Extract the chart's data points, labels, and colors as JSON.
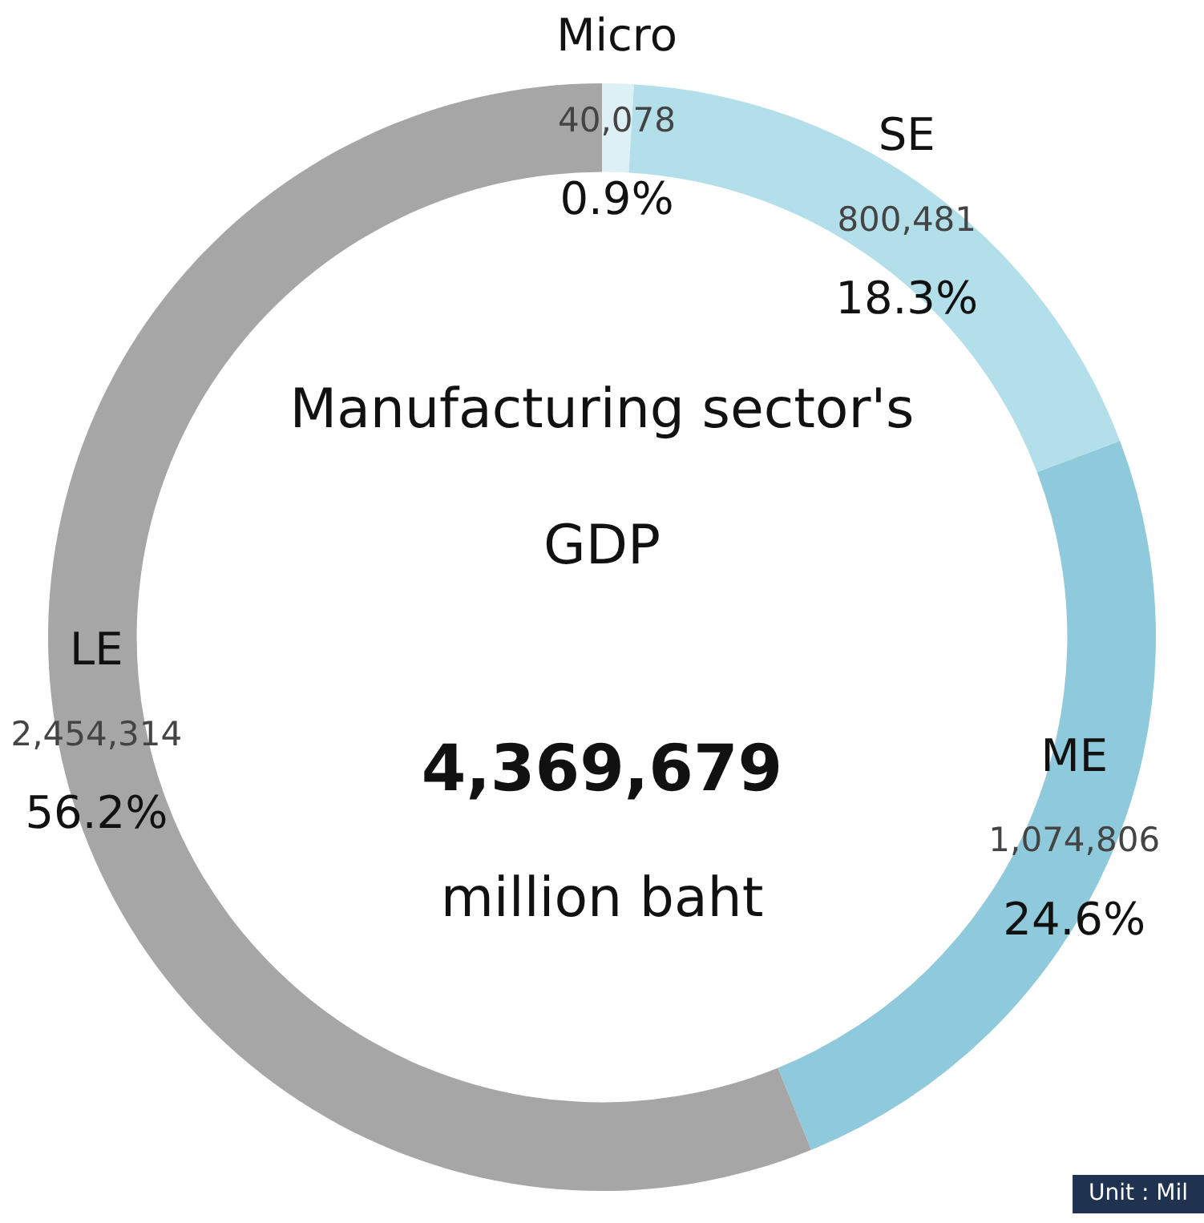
{
  "chart_data": {
    "type": "donut",
    "categories": [
      "Micro",
      "SE",
      "ME",
      "LE"
    ],
    "values": [
      40078,
      800481,
      1074806,
      2454314
    ],
    "colors": [
      "#dcf0f6",
      "#b3dfea",
      "#8fcadc",
      "#a6a6a6"
    ],
    "value_labels": [
      "40,078\n0.9%",
      "800,481\n18.3%",
      "1,074,806\n24.6%",
      "2,454,314\n56.2%"
    ],
    "annotations": [
      "Manufacturing sector's GDP",
      "4,369,679",
      "million baht",
      "Unit : Mil"
    ]
  }
}
